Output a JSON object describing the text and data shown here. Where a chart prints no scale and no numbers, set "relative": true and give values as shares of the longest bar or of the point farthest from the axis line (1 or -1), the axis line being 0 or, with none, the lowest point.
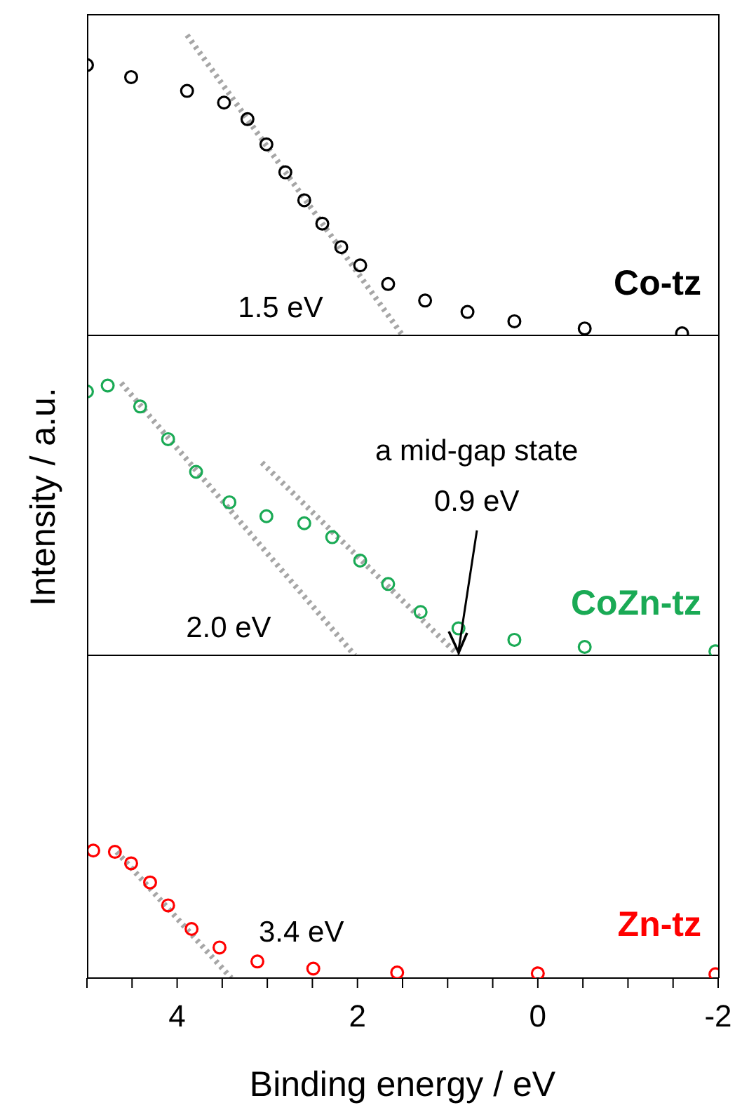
{
  "chart_data": [
    {
      "type": "scatter",
      "xlim": [
        5,
        -2
      ],
      "tick_labels": false,
      "relative": true,
      "marker": "circle",
      "series": [
        {
          "name": "Co-tz",
          "color": "#000000",
          "x": [
            5,
            4.51,
            3.89,
            3.48,
            3.22,
            3.01,
            2.8,
            2.59,
            2.39,
            2.18,
            1.97,
            1.66,
            1.25,
            0.78,
            0.26,
            -0.52,
            -1.6
          ],
          "values": [
            0.9,
            0.86,
            0.814,
            0.775,
            0.72,
            0.636,
            0.543,
            0.45,
            0.372,
            0.294,
            0.233,
            0.171,
            0.116,
            0.078,
            0.047,
            0.023,
            0.007
          ]
        },
        {
          "type": "line",
          "color": "#a6a6a6",
          "line_style": "dotted",
          "marker": "none",
          "x": [
            3.89,
            1.5
          ],
          "values": [
            1,
            0
          ]
        }
      ],
      "annotations": [
        {
          "text": "1.5 eV",
          "x": 1.5,
          "y": 0
        }
      ]
    },
    {
      "type": "scatter",
      "xlim": [
        5,
        -2
      ],
      "tick_labels": false,
      "relative": true,
      "marker": "circle",
      "ylabel": "Intensity / a.u.",
      "series": [
        {
          "name": "CoZn-tz",
          "color": "#1aaa55",
          "x": [
            5,
            4.77,
            4.41,
            4.1,
            3.79,
            3.42,
            3.01,
            2.59,
            2.28,
            1.97,
            1.66,
            1.3,
            0.88,
            0.26,
            -0.52,
            -1.97
          ],
          "values": [
            0.969,
            0.991,
            0.914,
            0.794,
            0.674,
            0.562,
            0.511,
            0.485,
            0.434,
            0.348,
            0.262,
            0.159,
            0.099,
            0.057,
            0.031,
            0.015
          ]
        },
        {
          "type": "line",
          "color": "#a6a6a6",
          "line_style": "dotted",
          "marker": "none",
          "x": [
            4.62,
            2.03
          ],
          "values": [
            1,
            0
          ]
        },
        {
          "type": "line",
          "color": "#a6a6a6",
          "line_style": "dotted",
          "marker": "none",
          "x": [
            3.06,
            0.88
          ],
          "values": [
            0.708,
            0
          ]
        }
      ],
      "annotations": [
        {
          "text": "2.0 eV",
          "x": 2.03,
          "y": 0
        },
        {
          "text": "a mid-gap state\n0.9 eV",
          "x": 0.88,
          "y": 0
        }
      ]
    },
    {
      "type": "scatter",
      "xlim": [
        5,
        -2
      ],
      "tick_labels": "x",
      "relative": true,
      "marker": "circle",
      "xlabel": "Binding energy / eV",
      "xticks": [
        {
          "value": 5,
          "label": null
        },
        {
          "value": 4.5,
          "label": null
        },
        4,
        {
          "value": 3.5,
          "label": null
        },
        {
          "value": 3,
          "label": null
        },
        {
          "value": 2.5,
          "label": null
        },
        2,
        {
          "value": 1.5,
          "label": null
        },
        {
          "value": 1,
          "label": null
        },
        {
          "value": 0.5,
          "label": null
        },
        0,
        {
          "value": -0.5,
          "label": null
        },
        {
          "value": -1,
          "label": null
        },
        {
          "value": -1.5,
          "label": null
        },
        -2
      ],
      "series": [
        {
          "name": "Zn-tz",
          "color": "#ff0000",
          "x": [
            4.93,
            4.69,
            4.51,
            4.3,
            4.1,
            3.84,
            3.53,
            3.11,
            2.49,
            1.56,
            0,
            -1.97
          ],
          "values": [
            1,
            0.99,
            0.9,
            0.75,
            0.57,
            0.385,
            0.24,
            0.13,
            0.074,
            0.044,
            0.037,
            0.03
          ]
        },
        {
          "type": "line",
          "color": "#a6a6a6",
          "line_style": "dotted",
          "marker": "none",
          "x": [
            4.67,
            3.4
          ],
          "values": [
            0.99,
            0
          ]
        }
      ],
      "annotations": [
        {
          "text": "3.4 eV",
          "x": 3.4,
          "y": 0
        }
      ]
    }
  ]
}
